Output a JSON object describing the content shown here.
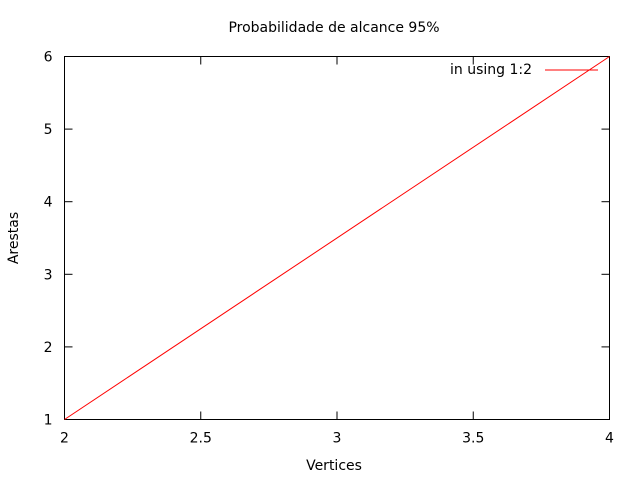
{
  "chart_data": {
    "type": "line",
    "title": "Probabilidade de alcance 95%",
    "xlabel": "Vertices",
    "ylabel": "Arestas",
    "xlim": [
      2,
      4
    ],
    "ylim": [
      1,
      6
    ],
    "xticks": [
      "2",
      "2.5",
      "3",
      "3.5",
      "4"
    ],
    "yticks": [
      "1",
      "2",
      "3",
      "4",
      "5",
      "6"
    ],
    "legend_position": "top-right",
    "grid": false,
    "series": [
      {
        "name": "in using 1:2",
        "color": "#ff0000",
        "x": [
          2,
          4
        ],
        "y": [
          1,
          6
        ]
      }
    ]
  }
}
